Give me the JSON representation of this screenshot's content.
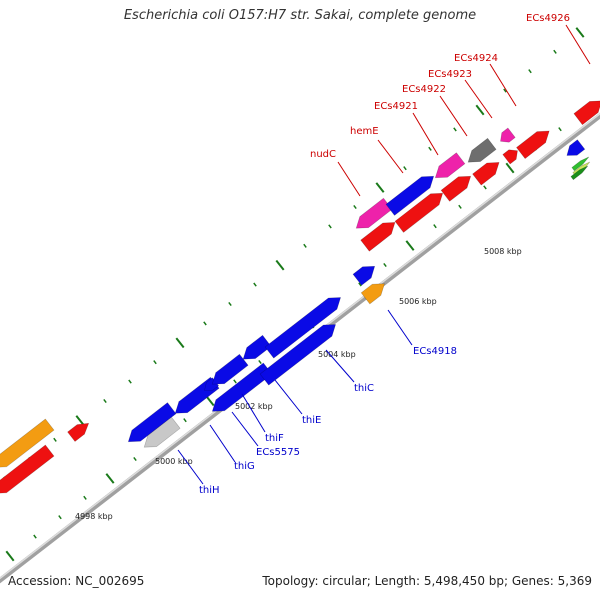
{
  "title": "Escherichia coli O157:H7 str. Sakai, complete genome",
  "footer": {
    "accession": "Accession: NC_002695",
    "summary": "Topology: circular; Length: 5,498,450 bp; Genes: 5,369"
  },
  "colors": {
    "backbone": "#a0a0a0",
    "tick": "#1a7a1a",
    "red": "#ee1111",
    "blue": "#0a0ae6",
    "magenta": "#ee22aa",
    "orange": "#f39c12",
    "gray": "#6e6e6e",
    "lightgray": "#c8c8c8",
    "label_red": "#cc0000",
    "label_blue": "#0000cc"
  },
  "tick_labels": [
    "4998 kbp",
    "5000 kbp",
    "5002 kbp",
    "5004 kbp",
    "5006 kbp",
    "5008 kbp"
  ],
  "gene_labels_top": [
    "nudC",
    "hemE",
    "ECs4921",
    "ECs4922",
    "ECs4923",
    "ECs4924",
    "ECs4926"
  ],
  "gene_labels_bottom": [
    "thiH",
    "thiG",
    "ECs5575",
    "thiF",
    "thiE",
    "thiC",
    "ECs4918"
  ]
}
